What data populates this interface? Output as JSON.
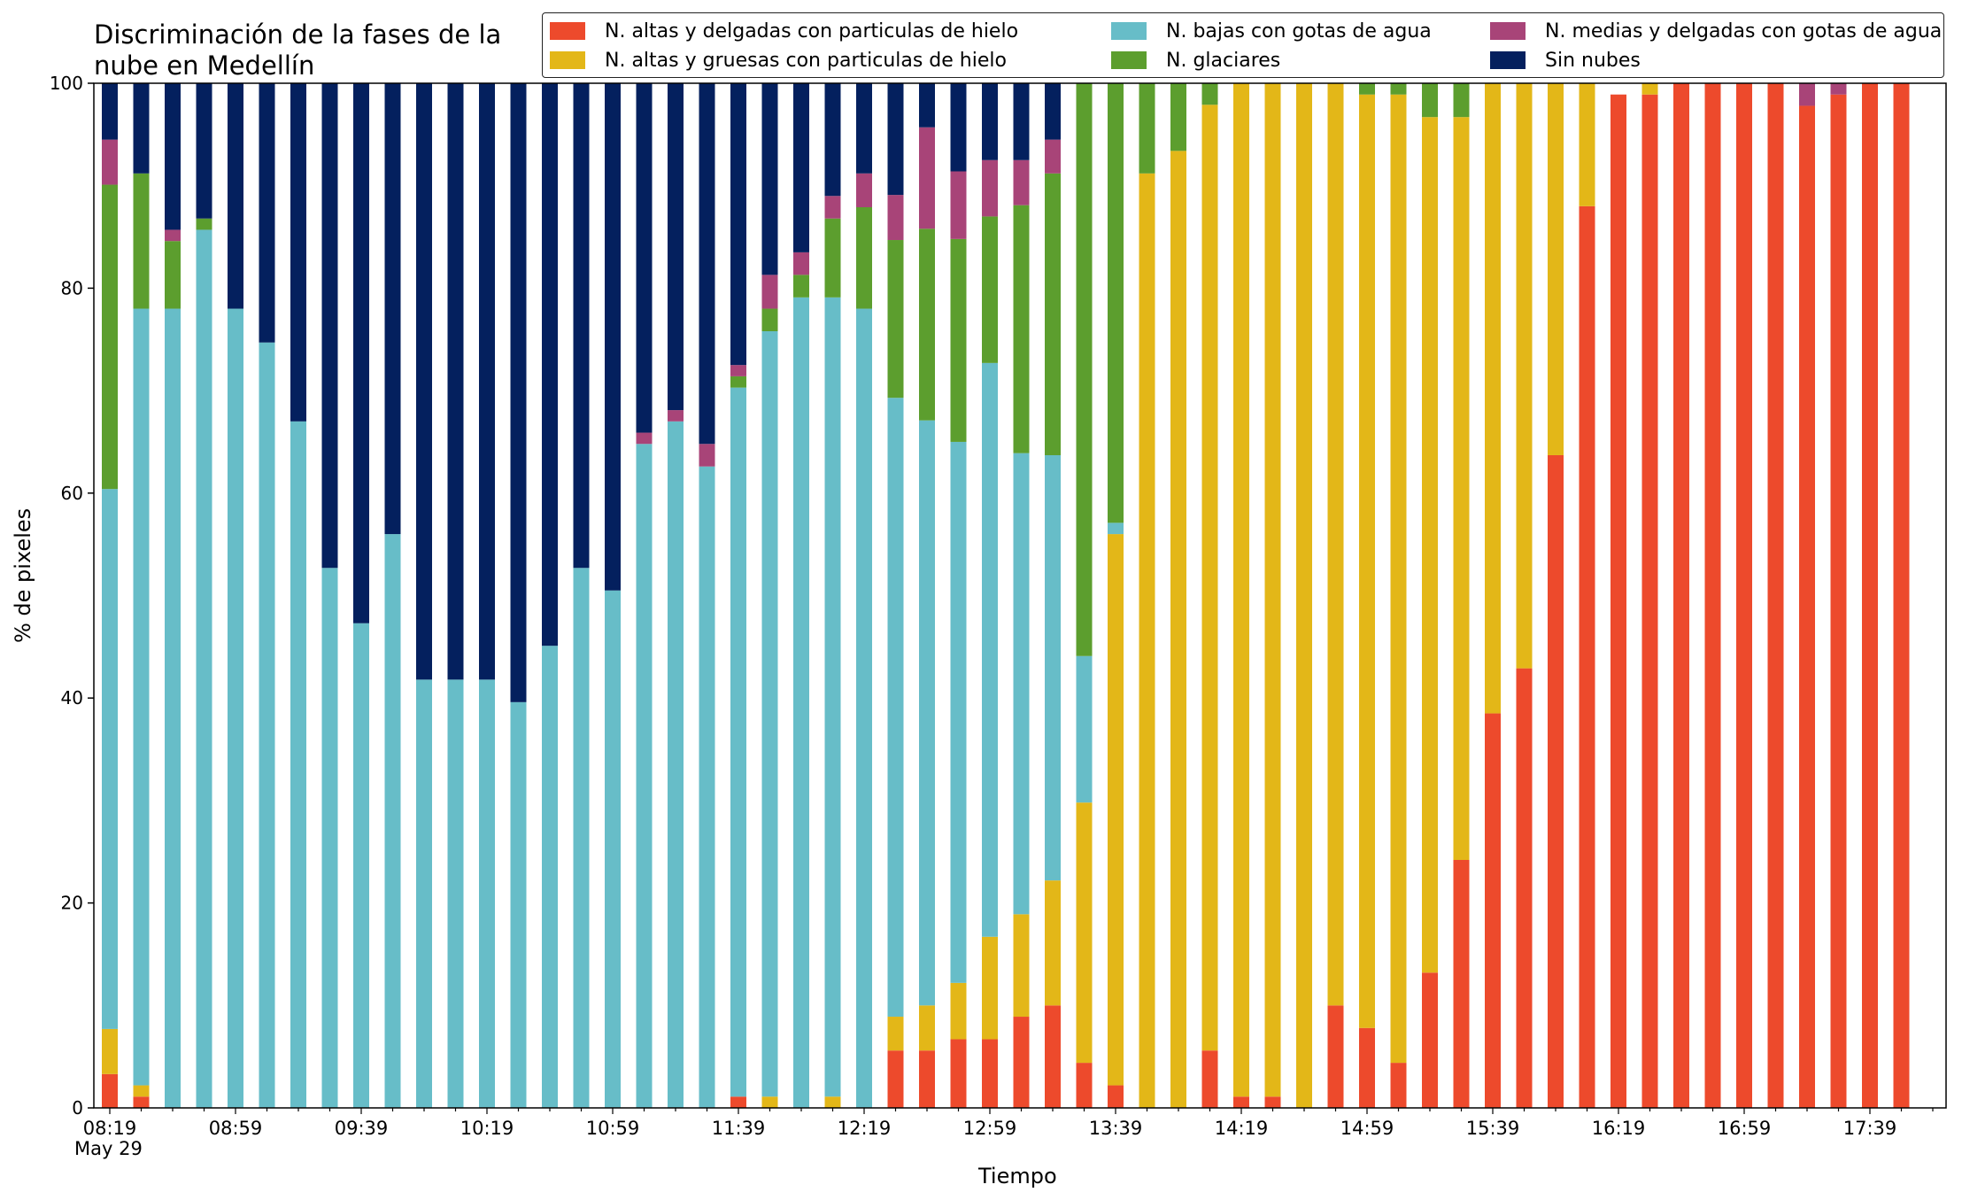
{
  "chart_data": {
    "type": "bar",
    "stacked": true,
    "title": "Discriminación de la fases de la\nnube en Medellín",
    "xlabel": "Tiempo",
    "ylabel": "% de pixeles",
    "ylim": [
      0,
      100
    ],
    "yticks": [
      "0",
      "20",
      "40",
      "60",
      "80",
      "100"
    ],
    "xtick_labels": [
      "08:19",
      "08:59",
      "09:39",
      "10:19",
      "10:59",
      "11:39",
      "12:19",
      "12:59",
      "13:39",
      "14:19",
      "14:59",
      "15:39",
      "16:19",
      "16:59",
      "17:39"
    ],
    "xtick_date": "May 29",
    "grid": false,
    "legend_position": "top",
    "categories": [
      "08:19",
      "08:29",
      "08:39",
      "08:49",
      "08:59",
      "09:09",
      "09:19",
      "09:29",
      "09:39",
      "09:49",
      "09:59",
      "10:09",
      "10:19",
      "10:29",
      "10:39",
      "10:49",
      "10:59",
      "11:09",
      "11:19",
      "11:29",
      "11:39",
      "11:49",
      "11:59",
      "12:09",
      "12:19",
      "12:29",
      "12:39",
      "12:49",
      "12:59",
      "13:09",
      "13:19",
      "13:29",
      "13:39",
      "13:49",
      "13:59",
      "14:09",
      "14:19",
      "14:29",
      "14:39",
      "14:49",
      "14:59",
      "15:09",
      "15:19",
      "15:29",
      "15:39",
      "15:49",
      "15:59",
      "16:09",
      "16:19",
      "16:29",
      "16:39",
      "16:49",
      "16:59",
      "17:09",
      "17:19",
      "17:29",
      "17:39",
      "17:49"
    ],
    "series": [
      {
        "name": "N. altas y delgadas con particulas de hielo",
        "color": "#ed4a2c",
        "values": [
          3.3,
          1.1,
          0,
          0,
          0,
          0,
          0,
          0,
          0,
          0,
          0,
          0,
          0,
          0,
          0,
          0,
          0,
          0,
          0,
          0,
          1.1,
          0,
          0,
          0,
          0,
          5.6,
          5.6,
          6.7,
          6.7,
          8.9,
          10,
          4.4,
          2.2,
          0,
          0,
          5.6,
          1.1,
          1.1,
          0,
          10,
          7.8,
          4.4,
          13.2,
          24.2,
          38.5,
          42.9,
          63.7,
          88,
          98.9,
          98.9,
          100,
          100,
          100,
          100,
          97.8,
          98.9,
          100,
          100
        ]
      },
      {
        "name": "N. altas y gruesas con particulas de hielo",
        "color": "#e3b718",
        "values": [
          4.4,
          1.1,
          0,
          0,
          0,
          0,
          0,
          0,
          0,
          0,
          0,
          0,
          0,
          0,
          0,
          0,
          0,
          0,
          0,
          0,
          0,
          1.1,
          0,
          1.1,
          0,
          3.3,
          4.4,
          5.5,
          10,
          10,
          12.2,
          25.4,
          53.8,
          91.2,
          93.4,
          92.3,
          98.9,
          98.9,
          100,
          90,
          91.1,
          94.5,
          83.5,
          72.5,
          61.5,
          57.1,
          36.3,
          12,
          0,
          1.1,
          0,
          0,
          0,
          0,
          0,
          0,
          0,
          0
        ]
      },
      {
        "name": "N. bajas con gotas de agua",
        "color": "#67bdc8",
        "values": [
          52.7,
          75.8,
          78,
          85.7,
          78,
          74.7,
          67,
          52.7,
          47.3,
          56,
          41.8,
          41.8,
          41.8,
          39.6,
          45.1,
          52.7,
          50.5,
          64.8,
          67,
          62.6,
          69.2,
          74.7,
          79.1,
          78,
          78,
          60.4,
          57.1,
          52.8,
          56,
          45,
          41.5,
          14.3,
          1.1,
          0,
          0,
          0,
          0,
          0,
          0,
          0,
          0,
          0,
          0,
          0,
          0,
          0,
          0,
          0,
          0,
          0,
          0,
          0,
          0,
          0,
          0,
          0,
          0,
          0
        ]
      },
      {
        "name": "N. glaciares",
        "color": "#5c9e2e",
        "values": [
          29.7,
          13.2,
          6.6,
          1.1,
          0,
          0,
          0,
          0,
          0,
          0,
          0,
          0,
          0,
          0,
          0,
          0,
          0,
          0,
          0,
          0,
          1.1,
          2.2,
          2.2,
          7.7,
          9.9,
          15.4,
          18.7,
          19.8,
          14.3,
          24.2,
          27.5,
          56,
          42.9,
          8.8,
          6.6,
          2.2,
          0,
          0,
          0,
          0,
          1.1,
          1.1,
          3.3,
          3.3,
          0,
          0,
          0,
          0,
          0,
          0,
          0,
          0,
          0,
          0,
          0,
          0,
          0,
          0
        ]
      },
      {
        "name": "N. medias y delgadas con gotas de agua",
        "color": "#a84478",
        "values": [
          4.4,
          0,
          1.1,
          0,
          0,
          0,
          0,
          0,
          0,
          0,
          0,
          0,
          0,
          0,
          0,
          0,
          0,
          1.1,
          1.1,
          2.2,
          1.1,
          3.3,
          2.2,
          2.2,
          3.3,
          4.4,
          9.9,
          6.6,
          5.5,
          4.4,
          3.3,
          0,
          0,
          0,
          0,
          0,
          0,
          0,
          0,
          0,
          0,
          0,
          0,
          0,
          0,
          0,
          0,
          0,
          0,
          0,
          0,
          0,
          0,
          0,
          2.2,
          1.1,
          0,
          0
        ]
      },
      {
        "name": "Sin nubes",
        "color": "#04205e",
        "values": [
          5.5,
          8.8,
          14.3,
          13.2,
          22,
          25.3,
          33,
          47.3,
          52.7,
          44,
          58.2,
          58.2,
          58.2,
          60.4,
          54.9,
          47.3,
          49.5,
          34.1,
          31.9,
          35.2,
          27.5,
          18.7,
          16.5,
          11,
          8.8,
          11,
          4.4,
          8.8,
          7.7,
          7.7,
          5.5,
          0,
          0,
          0,
          0,
          0,
          0,
          0,
          0,
          0,
          0,
          0,
          0,
          0,
          0,
          0,
          0,
          0,
          0,
          0,
          0,
          0,
          0,
          0,
          0,
          0,
          0,
          0
        ]
      }
    ]
  }
}
